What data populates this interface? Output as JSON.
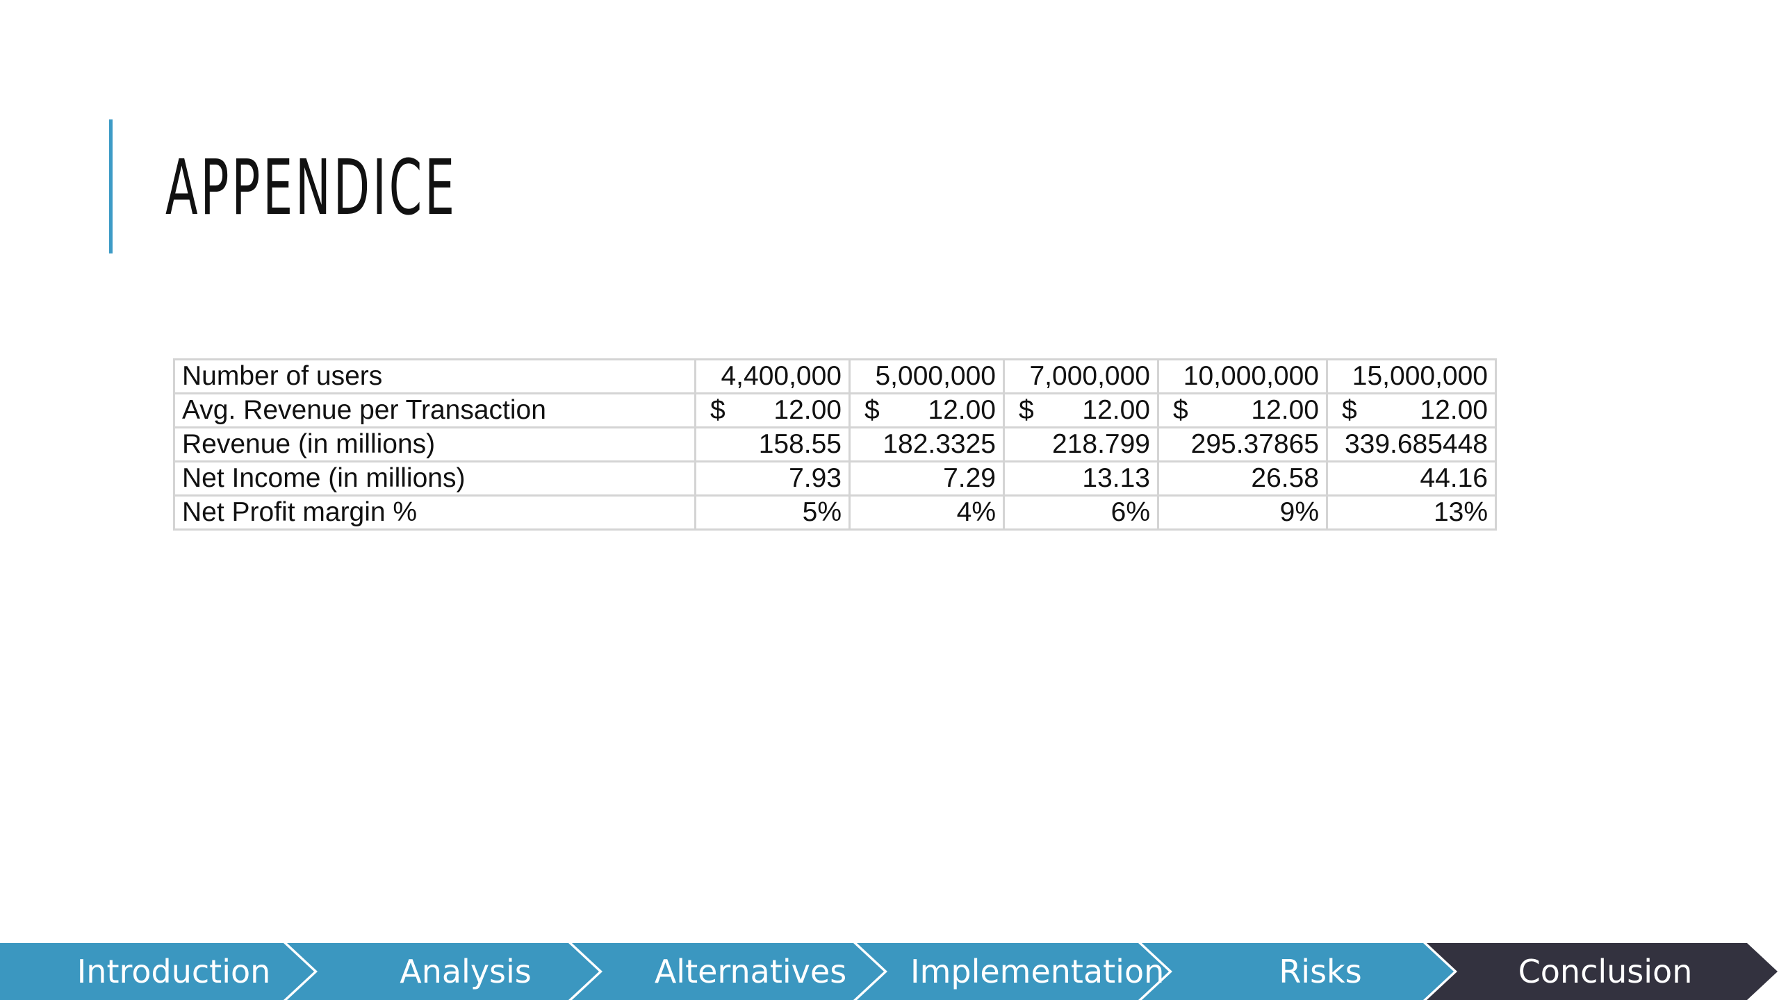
{
  "slide": {
    "title": "APPENDICE"
  },
  "table": {
    "rows": [
      {
        "label": "Number of users",
        "cells": [
          "4,400,000",
          "5,000,000",
          "7,000,000",
          "10,000,000",
          "15,000,000"
        ]
      },
      {
        "label": "Avg. Revenue per Transaction",
        "currency_symbol": "$",
        "cells": [
          "12.00",
          "12.00",
          "12.00",
          "12.00",
          "12.00"
        ]
      },
      {
        "label": "Revenue (in millions)",
        "cells": [
          "158.55",
          "182.3325",
          "218.799",
          "295.37865",
          "339.685448"
        ]
      },
      {
        "label": "Net Income (in millions)",
        "cells": [
          "7.93",
          "7.29",
          "13.13",
          "26.58",
          "44.16"
        ]
      },
      {
        "label": "Net Profit margin %",
        "cells": [
          "5%",
          "4%",
          "6%",
          "9%",
          "13%"
        ]
      }
    ]
  },
  "nav": {
    "items": [
      {
        "label": "Introduction",
        "active": false
      },
      {
        "label": "Analysis",
        "active": false
      },
      {
        "label": "Alternatives",
        "active": false
      },
      {
        "label": "Implementation",
        "active": false
      },
      {
        "label": "Risks",
        "active": false
      },
      {
        "label": "Conclusion",
        "active": true
      }
    ],
    "colors": {
      "default": "#3b97c0",
      "active": "#33323f"
    }
  },
  "colors": {
    "accent": "#3d9bc6",
    "border": "#d4d4d4",
    "text": "#111111"
  }
}
